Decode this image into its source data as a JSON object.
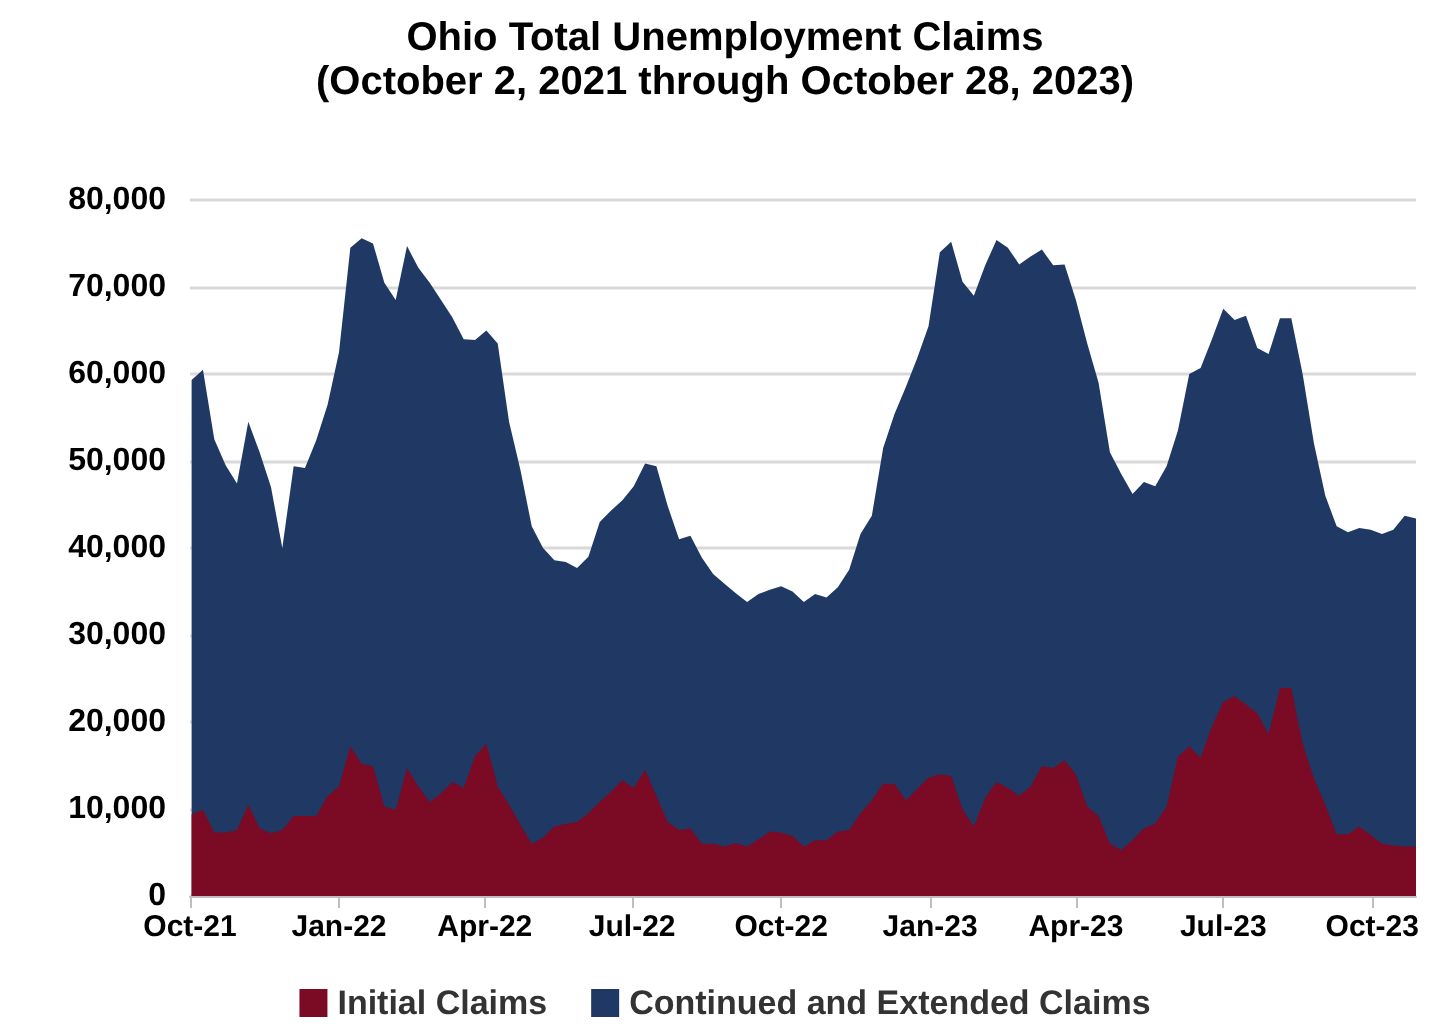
{
  "chart_data": {
    "type": "area",
    "title": "Ohio Total Unemployment Claims",
    "subtitle": "(October 2, 2021 through October 28, 2023)",
    "stacked": true,
    "grid": "y",
    "legend": "bottom",
    "marker": "none",
    "xlim": [
      "2021-10-01",
      "2023-10-28"
    ],
    "xticks": [
      {
        "value": "2021-10-01",
        "label": "Oct-21"
      },
      {
        "value": "2022-01-01",
        "label": "Jan-22"
      },
      {
        "value": "2022-04-01",
        "label": "Apr-22"
      },
      {
        "value": "2022-07-01",
        "label": "Jul-22"
      },
      {
        "value": "2022-10-01",
        "label": "Oct-22"
      },
      {
        "value": "2023-01-01",
        "label": "Jan-23"
      },
      {
        "value": "2023-04-01",
        "label": "Apr-23"
      },
      {
        "value": "2023-07-01",
        "label": "Jul-23"
      },
      {
        "value": "2023-10-01",
        "label": "Oct-23"
      }
    ],
    "ylim": [
      0,
      80000
    ],
    "yticks": [
      {
        "value": 0,
        "label": "0"
      },
      {
        "value": 10000,
        "label": "10,000"
      },
      {
        "value": 20000,
        "label": "20,000"
      },
      {
        "value": 30000,
        "label": "30,000"
      },
      {
        "value": 40000,
        "label": "40,000"
      },
      {
        "value": 50000,
        "label": "50,000"
      },
      {
        "value": 60000,
        "label": "60,000"
      },
      {
        "value": 70000,
        "label": "70,000"
      },
      {
        "value": 80000,
        "label": "80,000"
      }
    ],
    "x": [
      "2021-10-02",
      "2021-10-09",
      "2021-10-16",
      "2021-10-23",
      "2021-10-30",
      "2021-11-06",
      "2021-11-13",
      "2021-11-20",
      "2021-11-27",
      "2021-12-04",
      "2021-12-11",
      "2021-12-18",
      "2021-12-25",
      "2022-01-01",
      "2022-01-08",
      "2022-01-15",
      "2022-01-22",
      "2022-01-29",
      "2022-02-05",
      "2022-02-12",
      "2022-02-19",
      "2022-02-26",
      "2022-03-05",
      "2022-03-12",
      "2022-03-19",
      "2022-03-26",
      "2022-04-02",
      "2022-04-09",
      "2022-04-16",
      "2022-04-23",
      "2022-04-30",
      "2022-05-07",
      "2022-05-14",
      "2022-05-21",
      "2022-05-28",
      "2022-06-04",
      "2022-06-11",
      "2022-06-18",
      "2022-06-25",
      "2022-07-02",
      "2022-07-09",
      "2022-07-16",
      "2022-07-23",
      "2022-07-30",
      "2022-08-06",
      "2022-08-13",
      "2022-08-20",
      "2022-08-27",
      "2022-09-03",
      "2022-09-10",
      "2022-09-17",
      "2022-09-24",
      "2022-10-01",
      "2022-10-08",
      "2022-10-15",
      "2022-10-22",
      "2022-10-29",
      "2022-11-05",
      "2022-11-12",
      "2022-11-19",
      "2022-11-26",
      "2022-12-03",
      "2022-12-10",
      "2022-12-17",
      "2022-12-24",
      "2022-12-31",
      "2023-01-07",
      "2023-01-14",
      "2023-01-21",
      "2023-01-28",
      "2023-02-04",
      "2023-02-11",
      "2023-02-18",
      "2023-02-25",
      "2023-03-04",
      "2023-03-11",
      "2023-03-18",
      "2023-03-25",
      "2023-04-01",
      "2023-04-08",
      "2023-04-15",
      "2023-04-22",
      "2023-04-29",
      "2023-05-06",
      "2023-05-13",
      "2023-05-20",
      "2023-05-27",
      "2023-06-03",
      "2023-06-10",
      "2023-06-17",
      "2023-06-24",
      "2023-07-01",
      "2023-07-08",
      "2023-07-15",
      "2023-07-22",
      "2023-07-29",
      "2023-08-05",
      "2023-08-12",
      "2023-08-19",
      "2023-08-26",
      "2023-09-02",
      "2023-09-09",
      "2023-09-16",
      "2023-09-23",
      "2023-09-30",
      "2023-10-07",
      "2023-10-14",
      "2023-10-21",
      "2023-10-28"
    ],
    "series": [
      {
        "name": "Initial Claims",
        "color": "#7b0a24",
        "values": [
          9400,
          9900,
          7300,
          7300,
          7600,
          10500,
          7800,
          7200,
          7600,
          9200,
          9200,
          9200,
          11500,
          12600,
          17200,
          15200,
          14900,
          10300,
          9900,
          14700,
          12600,
          10800,
          11800,
          13100,
          12400,
          16100,
          17500,
          12600,
          10500,
          8200,
          6000,
          6700,
          8000,
          8300,
          8500,
          9500,
          10800,
          12000,
          13300,
          12400,
          14500,
          11500,
          8500,
          7600,
          7800,
          6000,
          6000,
          5700,
          6100,
          5700,
          6500,
          7400,
          7300,
          6900,
          5700,
          6400,
          6400,
          7400,
          7600,
          9500,
          11000,
          12900,
          12900,
          11000,
          12300,
          13600,
          14000,
          13800,
          10000,
          8000,
          11300,
          13100,
          12400,
          11500,
          12600,
          14900,
          14700,
          15600,
          14000,
          10300,
          9200,
          6000,
          5300,
          6400,
          7800,
          8300,
          10300,
          16000,
          17200,
          15900,
          19500,
          22300,
          23000,
          22000,
          21000,
          18600,
          23900,
          23900,
          17500,
          13500,
          10500,
          7100,
          7100,
          8000,
          7000,
          6000,
          5800,
          5700,
          5700
        ]
      },
      {
        "name": "Continued and Extended Claims",
        "color": "#1f3864",
        "values": [
          49900,
          50600,
          45200,
          42200,
          39800,
          44000,
          43200,
          39800,
          32400,
          40200,
          40000,
          43200,
          45000,
          49900,
          57300,
          60400,
          60100,
          60200,
          58600,
          60000,
          59600,
          59700,
          56700,
          53400,
          51600,
          47800,
          47500,
          50900,
          44000,
          40800,
          36500,
          33300,
          30600,
          30100,
          29200,
          29500,
          32200,
          32300,
          32200,
          34700,
          35200,
          37900,
          36300,
          33400,
          33600,
          32900,
          31000,
          30200,
          28700,
          28100,
          28200,
          27800,
          28300,
          28100,
          28100,
          28300,
          27900,
          28100,
          29900,
          32100,
          32700,
          38600,
          42500,
          47500,
          49500,
          51900,
          60000,
          61400,
          60600,
          61000,
          61200,
          62300,
          62100,
          61100,
          60900,
          59400,
          57800,
          57000,
          54500,
          53200,
          49800,
          45000,
          43200,
          39800,
          39800,
          38800,
          39100,
          37500,
          42800,
          44800,
          44500,
          45200,
          43200,
          44700,
          42000,
          43700,
          42500,
          42500,
          42500,
          38500,
          35500,
          35400,
          34700,
          34300,
          35100,
          35600,
          36300,
          38000,
          37700
        ]
      }
    ]
  }
}
